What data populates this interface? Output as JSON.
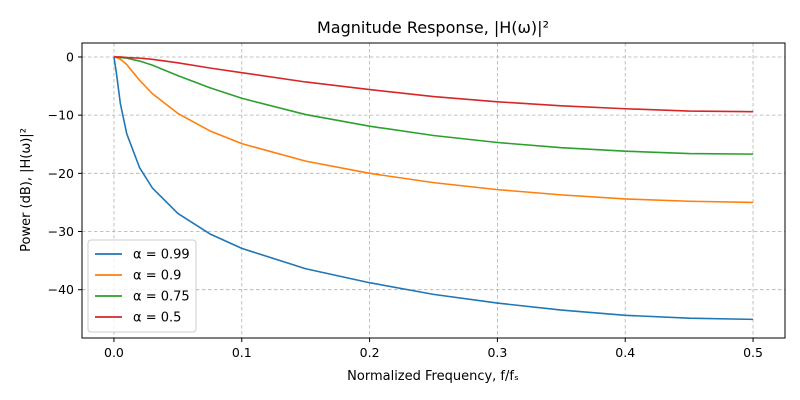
{
  "chart_data": {
    "type": "line",
    "title": "Magnitude Response, |H(ω)|²",
    "xlabel": "Normalized Frequency, f/fₛ",
    "ylabel": "Power (dB), |H(ω)|²",
    "xlim": [
      -0.025,
      0.525
    ],
    "ylim": [
      -48.3,
      2.4
    ],
    "xticks": [
      0.0,
      0.1,
      0.2,
      0.3,
      0.4,
      0.5
    ],
    "xtick_labels": [
      "0.0",
      "0.1",
      "0.2",
      "0.3",
      "0.4",
      "0.5"
    ],
    "yticks": [
      0,
      -10,
      -20,
      -30,
      -40
    ],
    "ytick_labels": [
      "0",
      "−10",
      "−20",
      "−30",
      "−40"
    ],
    "grid": true,
    "legend_position": "lower-left",
    "x": [
      0.0,
      0.002,
      0.005,
      0.01,
      0.02,
      0.03,
      0.05,
      0.075,
      0.1,
      0.15,
      0.2,
      0.25,
      0.3,
      0.35,
      0.4,
      0.45,
      0.5
    ],
    "series": [
      {
        "name": "α = 0.99",
        "color": "#1f77b4",
        "values": [
          0.0,
          -2.9,
          -8.0,
          -13.2,
          -19.0,
          -22.5,
          -26.9,
          -30.4,
          -32.9,
          -36.4,
          -38.8,
          -40.8,
          -42.3,
          -43.5,
          -44.4,
          -44.9,
          -45.1
        ]
      },
      {
        "name": "α = 0.9",
        "color": "#ff7f0e",
        "values": [
          0.0,
          -0.1,
          -0.4,
          -1.3,
          -4.0,
          -6.3,
          -9.7,
          -12.7,
          -14.9,
          -17.9,
          -20.0,
          -21.6,
          -22.8,
          -23.7,
          -24.4,
          -24.8,
          -25.0
        ]
      },
      {
        "name": "α = 0.75",
        "color": "#2ca02c",
        "values": [
          0.0,
          0.0,
          -0.1,
          -0.2,
          -0.7,
          -1.4,
          -3.2,
          -5.3,
          -7.1,
          -9.9,
          -11.9,
          -13.5,
          -14.7,
          -15.6,
          -16.2,
          -16.6,
          -16.7
        ]
      },
      {
        "name": "α = 0.5",
        "color": "#d62728",
        "values": [
          0.0,
          0.0,
          0.0,
          -0.1,
          -0.2,
          -0.4,
          -1.0,
          -1.9,
          -2.7,
          -4.3,
          -5.6,
          -6.8,
          -7.7,
          -8.4,
          -8.9,
          -9.3,
          -9.4
        ]
      }
    ]
  }
}
